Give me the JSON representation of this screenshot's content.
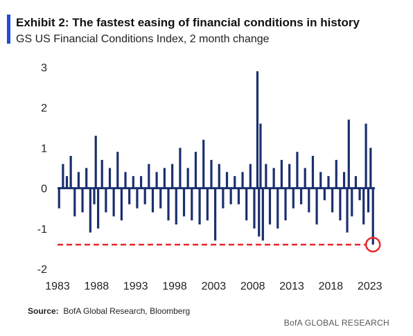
{
  "header": {
    "title": "Exhibit 2: The fastest easing of financial conditions in history",
    "subtitle": "GS US Financial Conditions Index, 2 month change"
  },
  "source": {
    "label": "Source:",
    "text": "BofA Global Research, Bloomberg"
  },
  "footer": "BofA GLOBAL RESEARCH",
  "colors": {
    "accent": "#1f4bd8",
    "bars": "#1b2f6e",
    "reference": "#e8262a"
  },
  "chart_data": {
    "type": "bar",
    "title": "Exhibit 2: The fastest easing of financial conditions in history",
    "subtitle": "GS US Financial Conditions Index, 2 month change",
    "xlabel": "",
    "ylabel": "",
    "xlim": [
      1983,
      2024
    ],
    "ylim": [
      -2,
      3
    ],
    "yticks": [
      3,
      2,
      1,
      0,
      -1,
      -2
    ],
    "xticks": [
      1983,
      1988,
      1993,
      1998,
      2003,
      2008,
      2013,
      2018,
      2023
    ],
    "reference_line": {
      "y": -1.4,
      "style": "dashed",
      "label": ""
    },
    "highlight": {
      "x": 2023.4,
      "y": -1.4,
      "marker": "circle"
    },
    "grid": false,
    "series": [
      {
        "x": [
          1983.2,
          1983.7,
          1984.2,
          1984.7,
          1985.2,
          1985.7,
          1986.2,
          1986.7,
          1987.2,
          1987.7,
          1987.9,
          1988.2,
          1988.7,
          1989.2,
          1989.7,
          1990.2,
          1990.7,
          1991.2,
          1991.7,
          1992.2,
          1992.7,
          1993.2,
          1993.7,
          1994.2,
          1994.7,
          1995.2,
          1995.7,
          1996.2,
          1996.7,
          1997.2,
          1997.7,
          1998.2,
          1998.7,
          1999.2,
          1999.7,
          2000.2,
          2000.7,
          2001.2,
          2001.7,
          2002.2,
          2002.7,
          2003.2,
          2003.7,
          2004.2,
          2004.7,
          2005.2,
          2005.7,
          2006.2,
          2006.7,
          2007.2,
          2007.7,
          2008.2,
          2008.6,
          2008.8,
          2009.0,
          2009.3,
          2009.7,
          2010.2,
          2010.7,
          2011.2,
          2011.7,
          2012.2,
          2012.7,
          2013.2,
          2013.7,
          2014.2,
          2014.7,
          2015.2,
          2015.7,
          2016.2,
          2016.7,
          2017.2,
          2017.7,
          2018.2,
          2018.7,
          2019.2,
          2019.7,
          2020.1,
          2020.3,
          2020.7,
          2021.2,
          2021.7,
          2022.2,
          2022.5,
          2022.8,
          2023.1,
          2023.4
        ],
        "values": [
          -0.5,
          0.6,
          0.3,
          0.8,
          -0.7,
          0.4,
          -0.6,
          0.5,
          -1.1,
          -0.4,
          1.3,
          -1.0,
          0.7,
          -0.6,
          0.5,
          -0.7,
          0.9,
          -0.8,
          0.4,
          -0.4,
          0.3,
          -0.5,
          0.3,
          -0.4,
          0.6,
          -0.6,
          0.4,
          -0.5,
          0.5,
          -0.8,
          0.6,
          -0.9,
          1.0,
          -0.7,
          0.5,
          -0.8,
          0.9,
          -0.9,
          1.2,
          -0.8,
          0.7,
          -1.3,
          0.6,
          -0.5,
          0.4,
          -0.4,
          0.3,
          -0.4,
          0.4,
          -0.8,
          0.6,
          -1.0,
          2.9,
          -1.2,
          1.6,
          -1.3,
          0.6,
          -0.9,
          0.5,
          -1.0,
          0.7,
          -0.8,
          0.6,
          -0.5,
          0.9,
          -0.4,
          0.5,
          -0.6,
          0.8,
          -0.9,
          0.4,
          -0.3,
          0.3,
          -0.6,
          0.7,
          -0.8,
          0.4,
          -1.1,
          1.7,
          -0.7,
          0.3,
          -0.3,
          -0.9,
          1.6,
          -0.6,
          1.0,
          -1.4
        ]
      }
    ]
  }
}
